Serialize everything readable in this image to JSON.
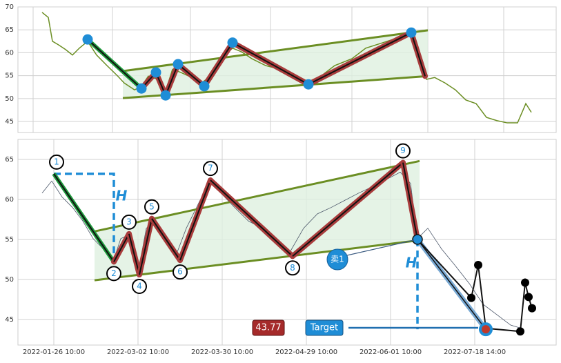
{
  "chart_data": [
    {
      "type": "line",
      "x": [
        35,
        44,
        50,
        59,
        69,
        79,
        89,
        101,
        114,
        129,
        144,
        154,
        169,
        179,
        189,
        202,
        214,
        224,
        236,
        252,
        266,
        279,
        294,
        311,
        324,
        339,
        359,
        379,
        399,
        421,
        439,
        459,
        484,
        504,
        529,
        549,
        570,
        579,
        592,
        604,
        619,
        634,
        649,
        664,
        679,
        694,
        709,
        724,
        736,
        744
      ],
      "series": [
        {
          "color": "#6b8e23",
          "values": [
            68.8,
            67.7,
            62.5,
            61.7,
            60.7,
            59.5,
            61,
            62.5,
            59.5,
            57.2,
            55,
            53.4,
            51.9,
            52.7,
            54.9,
            54.2,
            51.6,
            56.4,
            55.7,
            54.6,
            53.4,
            54.9,
            58.7,
            61,
            60.2,
            58.7,
            57.2,
            56.4,
            55.2,
            53.7,
            54.9,
            57.2,
            58.7,
            61,
            62.2,
            63.2,
            64,
            61.7,
            54.2,
            54.6,
            53.4,
            51.9,
            49.7,
            48.9,
            45.9,
            45.2,
            44.7,
            44.7,
            48.9,
            47
          ]
        }
      ],
      "zigzag": {
        "x": [
          101,
          179,
          200,
          214,
          232,
          270,
          311,
          421,
          570,
          590
        ],
        "values": [
          62.9,
          52.2,
          55.7,
          50.7,
          57.5,
          52.7,
          62.2,
          53.1,
          64.4,
          54.9
        ]
      },
      "channel": {
        "x": [
          152,
          594
        ],
        "upper": [
          56,
          64.9
        ],
        "lower": [
          50.1,
          54.9
        ]
      },
      "xlim": [
        0,
        780
      ],
      "ylim": [
        42.6,
        70
      ],
      "yticks": [
        45,
        50,
        55,
        60,
        65,
        70
      ],
      "xticks": [
        22,
        137,
        250,
        366,
        484,
        594,
        704
      ],
      "grid": true
    },
    {
      "type": "line",
      "x": [
        35,
        49,
        64,
        79,
        94,
        109,
        124,
        139,
        149,
        162,
        174,
        186,
        199,
        214,
        229,
        244,
        264,
        279,
        294,
        314,
        334,
        354,
        374,
        394,
        414,
        434,
        454,
        474,
        494,
        514,
        534,
        554,
        569,
        579,
        594,
        614,
        634,
        654,
        674,
        694,
        714,
        729
      ],
      "series": [
        {
          "color": "#4a5568",
          "values": [
            60.8,
            62.3,
            60.3,
            59,
            57.3,
            55.1,
            53.8,
            52.5,
            55.1,
            55.6,
            50.8,
            56.4,
            57.3,
            55.1,
            53,
            56.4,
            59.9,
            62,
            60.8,
            59,
            57.3,
            56.4,
            54.7,
            53.4,
            56.4,
            58.2,
            59,
            59.9,
            60.8,
            61.6,
            62.5,
            63.4,
            62,
            55.1,
            56.4,
            53.8,
            51.7,
            49.5,
            46.9,
            45.6,
            44.3,
            43.9
          ]
        }
      ],
      "zigzag": {
        "x": [
          52,
          139,
          161,
          176,
          194,
          235,
          279,
          398,
          558,
          579
        ],
        "values": [
          63.2,
          52.2,
          55.7,
          50.6,
          57.6,
          52.4,
          62.4,
          52.9,
          64.6,
          55
        ],
        "labels": [
          "1",
          "2",
          "3",
          "4",
          "5",
          "6",
          "7",
          "8",
          "9"
        ]
      },
      "projection": {
        "x": [
          657,
          667,
          678,
          728,
          735,
          740,
          745
        ],
        "values": [
          47.7,
          51.8,
          43.9,
          43.5,
          49.6,
          47.8,
          46.4
        ]
      },
      "channel": {
        "x": [
          111,
          582
        ],
        "upper": [
          56,
          64.8
        ],
        "lower": [
          49.9,
          54.9
        ]
      },
      "target": {
        "x": 678,
        "value": 43.77
      },
      "annotations": {
        "height": "H",
        "target": "Target",
        "sell": "卖1"
      },
      "xlim": [
        0,
        780
      ],
      "ylim": [
        41.8,
        67.5
      ],
      "yticks": [
        45,
        50,
        55,
        60,
        65
      ],
      "xticks": [
        {
          "value": 52,
          "label": "2022-01-26 10:00"
        },
        {
          "value": 174,
          "label": "2022-03-02 10:00"
        },
        {
          "value": 296,
          "label": "2022-03-30 10:00"
        },
        {
          "value": 418,
          "label": "2022-04-29 10:00"
        },
        {
          "value": 540,
          "label": "2022-06-01 10:00"
        },
        {
          "value": 662,
          "label": "2022-07-18 14:00"
        }
      ],
      "grid": true
    }
  ]
}
